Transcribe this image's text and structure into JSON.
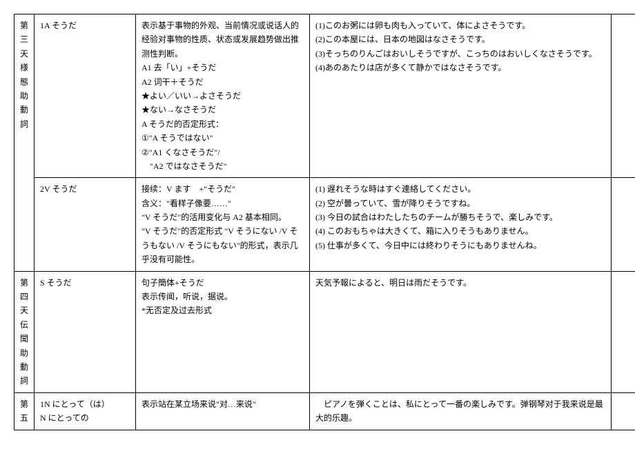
{
  "table": {
    "rows": [
      {
        "day_chars": [
          "第",
          "三",
          "天",
          "様",
          "態",
          "助",
          "動",
          "詞"
        ],
        "pattern": "1A そうだ",
        "grammar": "表示基于事物的外观、当前情况或说话人的经验对事物的性质、状态或发展趋势做出推测性判断。\nA1 去「い」+そうだ\nA2 词干＋そうだ\n★よい／いい→よさそうだ\n★ない→なさそうだ\nA そうだ的否定形式：\n①\"A そうではない\"\n②\"A1 くなさそうだ\"/\n　\"A2 ではなさそうだ\"",
        "examples": "(1)このお粥には卵も肉も入っていて、体によさそうです。\n(2)この本屋には、日本の地図はなさそうです。\n(3)そっちのりんごはおいしそうですが、こっちのはおいしくなさそうです。\n(4)あのあたりは店が多くて静かではなさそうです。",
        "rowspan": 2
      },
      {
        "day_chars": null,
        "pattern": "2V そうだ",
        "grammar": "接续：V ます　+\"そうだ\"\n含义：\"看样子像要……\"\n\"V そうだ\"的活用变化与 A2 基本相同。\n\"V そうだ\"的否定形式 \"V そうにない /V そうもない /V そうにもない\"的形式，表示几乎没有可能性。",
        "examples": "(1) 遅れそうな時はすぐ連絡してください。\n(2) 空が曇っていて、雪が降りそうですね。\n(3) 今日の試合はわたしたちのチームが勝ちそうで、楽しみです。\n(4) このおもちゃは大きくて、箱に入りそうもありません。\n(5) 仕事が多くて、今日中には終わりそうにもありませんね。"
      },
      {
        "day_chars": [
          "第",
          "四",
          "天",
          "伝",
          "聞",
          "助",
          "動",
          "詞"
        ],
        "pattern": "S そうだ",
        "grammar": "句子簡体+そうだ\n表示传闻，听说，据说。\n*无否定及过去形式",
        "examples": "天気予報によると、明日は雨だそうです。",
        "rowspan": 1
      },
      {
        "day_chars": [
          "第",
          "五"
        ],
        "pattern": "1N にとって（は）\nN にとっての",
        "grammar": "表示站在某立场来说\"对…来说\"",
        "examples": "　ピアノを弾くことは、私にとって一番の楽しみです。弹钢琴对于我来说是最大的乐趣。",
        "rowspan": 1
      }
    ]
  }
}
